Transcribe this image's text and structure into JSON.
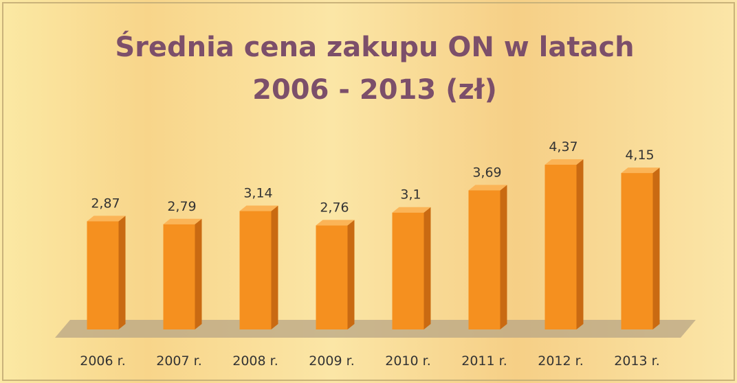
{
  "chart_data": {
    "type": "bar3d",
    "title": "Średnia cena zakupu ON w latach 2006 - 2013 (zł)",
    "categories": [
      "2006 r.",
      "2007 r.",
      "2008 r.",
      "2009 r.",
      "2010 r.",
      "2011 r.",
      "2012 r.",
      "2013 r."
    ],
    "values": [
      2.87,
      2.79,
      3.14,
      2.76,
      3.1,
      3.69,
      4.37,
      4.15
    ],
    "value_labels": [
      "2,87",
      "2,79",
      "3,14",
      "2,76",
      "3,1",
      "3,69",
      "4,37",
      "4,15"
    ],
    "color": "#f5901f"
  }
}
